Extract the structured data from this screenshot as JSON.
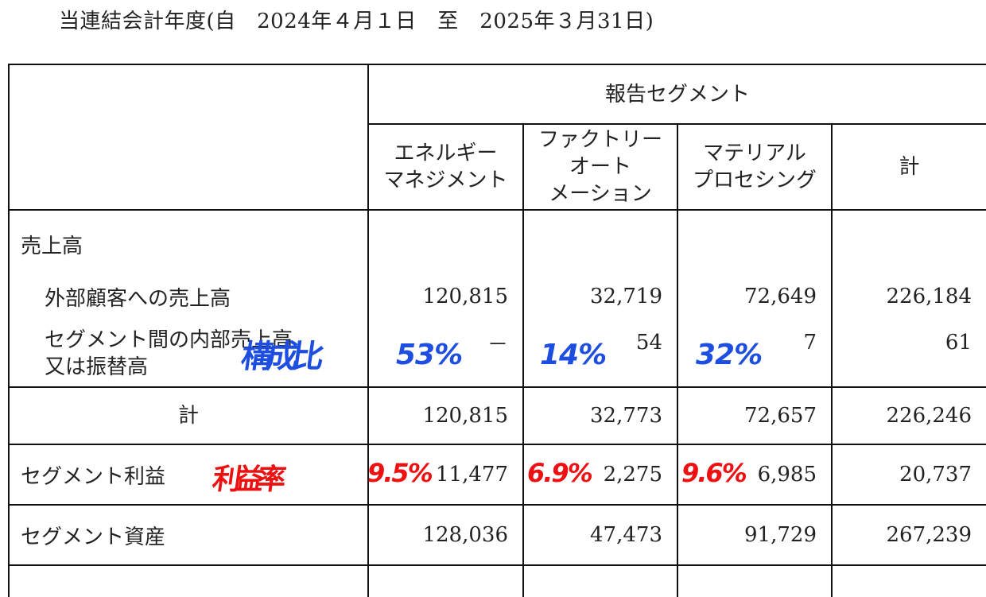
{
  "period": "当連結会計年度(自　2024年４月１日　至　2025年３月31日)",
  "header": {
    "group": "報告セグメント",
    "columns": [
      [
        "エネルギー",
        "マネジメント"
      ],
      [
        "ファクトリー",
        "オート",
        "メーション"
      ],
      [
        "マテリアル",
        "プロセシング"
      ],
      [
        "計"
      ]
    ]
  },
  "rows": {
    "sales_heading": "売上高",
    "external": {
      "label": "外部顧客への売上高",
      "values": [
        "120,815",
        "32,719",
        "72,649",
        "226,184"
      ]
    },
    "intersegment": {
      "label": [
        "セグメント間の内部売上高",
        "又は振替高"
      ],
      "values": [
        "－",
        "54",
        "7",
        "61"
      ]
    },
    "total": {
      "label": "計",
      "values": [
        "120,815",
        "32,773",
        "72,657",
        "226,246"
      ]
    },
    "profit": {
      "label": "セグメント利益",
      "values": [
        "11,477",
        "2,275",
        "6,985",
        "20,737"
      ]
    },
    "assets": {
      "label": "セグメント資産",
      "values": [
        "128,036",
        "47,473",
        "91,729",
        "267,239"
      ]
    }
  },
  "annotations": {
    "blue_word": "構成比",
    "blue_values": [
      "53%",
      "14%",
      "32%"
    ],
    "red_word": "利益率",
    "red_values": [
      "9.5%",
      "6.9%",
      "9.6%"
    ],
    "blue_color": "#1d4ee0",
    "red_color": "#ee1111"
  }
}
